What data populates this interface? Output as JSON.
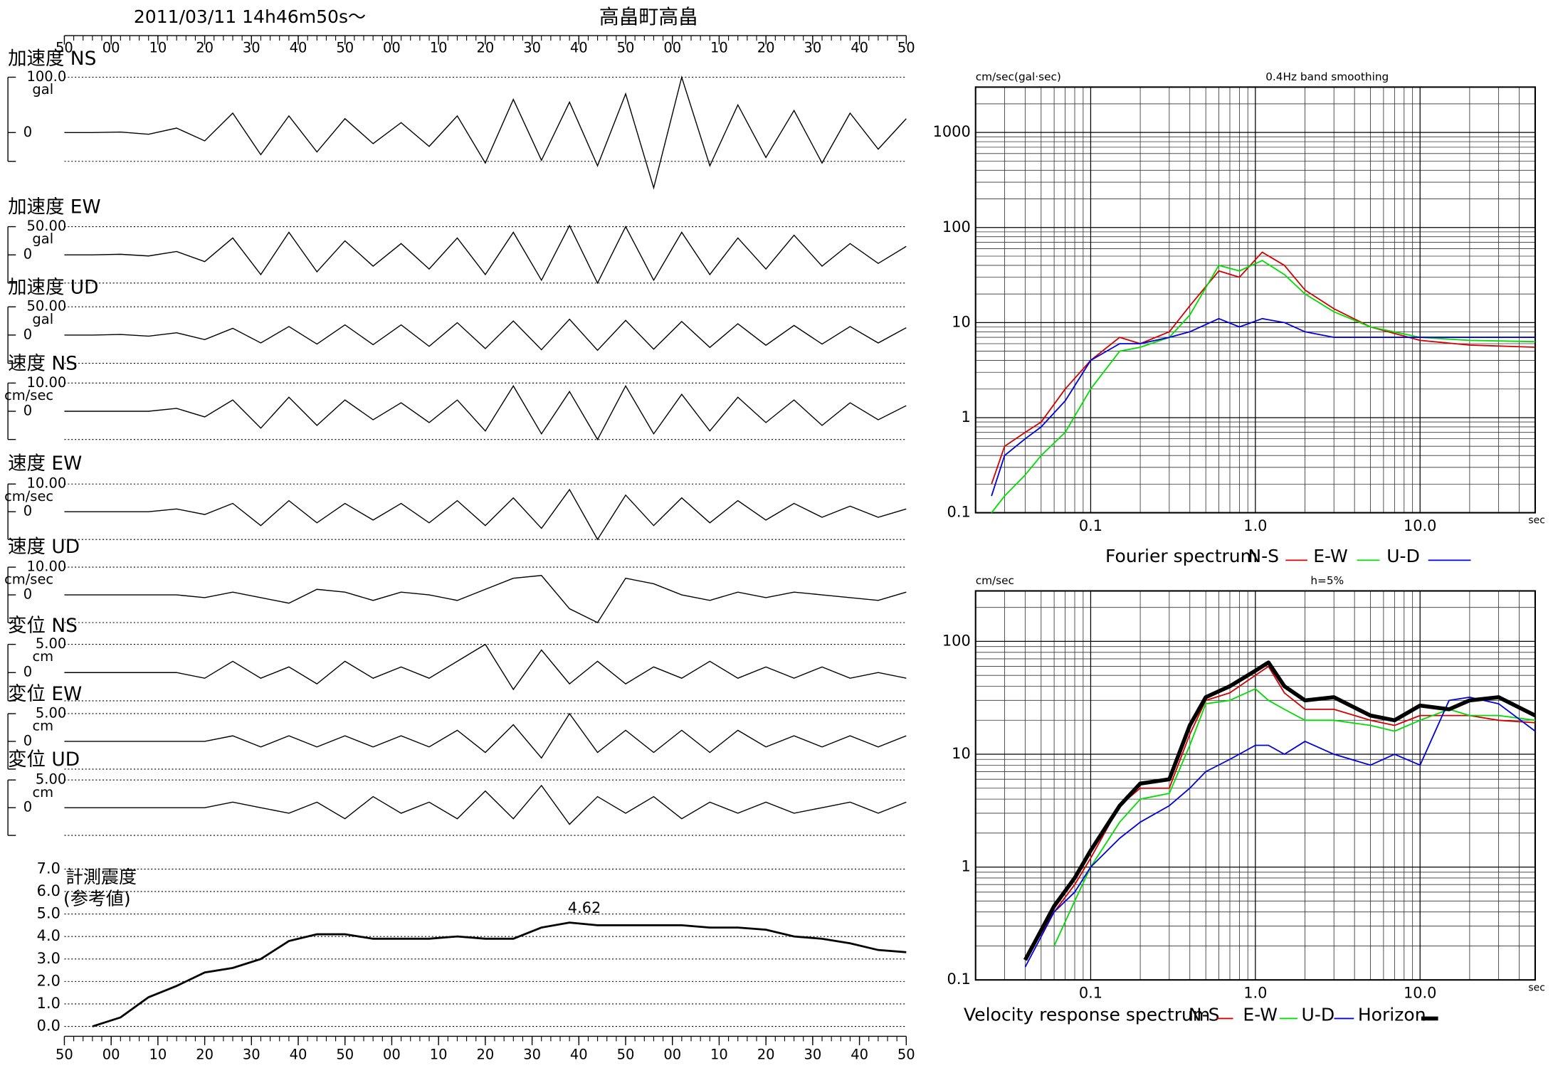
{
  "chart_data": [
    {
      "type": "waveform",
      "title": "2011/03/11  14h46m50s〜",
      "subtitle": "高畠町高畠",
      "xlim": [
        0,
        180
      ],
      "xticks": [
        {
          "value": 0,
          "label": "50"
        },
        {
          "value": 10,
          "label": "00"
        },
        {
          "value": 20,
          "label": "10"
        },
        {
          "value": 30,
          "label": "20"
        },
        {
          "value": 40,
          "label": "30"
        },
        {
          "value": 50,
          "label": "40"
        },
        {
          "value": 60,
          "label": "50"
        },
        {
          "value": 70,
          "label": "00"
        },
        {
          "value": 80,
          "label": "10"
        },
        {
          "value": 90,
          "label": "20"
        },
        {
          "value": 100,
          "label": "30"
        },
        {
          "value": 110,
          "label": "40"
        },
        {
          "value": 120,
          "label": "50"
        },
        {
          "value": 130,
          "label": "00"
        },
        {
          "value": 140,
          "label": "10"
        },
        {
          "value": 150,
          "label": "20"
        },
        {
          "value": 160,
          "label": "30"
        },
        {
          "value": 170,
          "label": "40"
        },
        {
          "value": 180,
          "label": "50"
        }
      ],
      "x": [
        0,
        6,
        12,
        18,
        24,
        30,
        36,
        42,
        48,
        54,
        60,
        66,
        72,
        78,
        84,
        90,
        96,
        102,
        108,
        114,
        120,
        126,
        132,
        138,
        144,
        150,
        156,
        162,
        168,
        174,
        180
      ],
      "panels": [
        {
          "name": "加速度 NS",
          "unit": "gal",
          "ylim": [
            -52,
            100
          ],
          "yticks": [
            0,
            {
              "value": 100,
              "label": "100.0"
            }
          ],
          "values": [
            0,
            0,
            1,
            -3,
            8,
            -15,
            35,
            -40,
            30,
            -35,
            25,
            -20,
            18,
            -25,
            30,
            -55,
            60,
            -50,
            55,
            -60,
            70,
            -100,
            100,
            -60,
            50,
            -45,
            40,
            -55,
            35,
            -30,
            25
          ]
        },
        {
          "name": "加速度 EW",
          "unit": "gal",
          "ylim": [
            -50,
            50
          ],
          "yticks": [
            0,
            {
              "value": 50,
              "label": "50.00"
            }
          ],
          "values": [
            0,
            0,
            1,
            -2,
            6,
            -12,
            30,
            -35,
            40,
            -30,
            25,
            -20,
            20,
            -25,
            30,
            -35,
            40,
            -45,
            52,
            -50,
            50,
            -45,
            40,
            -35,
            30,
            -25,
            35,
            -20,
            20,
            -15,
            15
          ]
        },
        {
          "name": "加速度 UD",
          "unit": "gal",
          "ylim": [
            -50,
            50
          ],
          "yticks": [
            0,
            {
              "value": 50,
              "label": "50.00"
            }
          ],
          "values": [
            0,
            0,
            1,
            -2,
            4,
            -8,
            12,
            -14,
            15,
            -16,
            18,
            -17,
            18,
            -20,
            22,
            -24,
            25,
            -26,
            28,
            -27,
            26,
            -25,
            24,
            -22,
            20,
            -18,
            17,
            -16,
            15,
            -14,
            13
          ]
        },
        {
          "name": "速度 NS",
          "unit": "cm/sec",
          "ylim": [
            -10,
            10
          ],
          "yticks": [
            0,
            {
              "value": 10,
              "label": "10.00"
            }
          ],
          "values": [
            0,
            0,
            0,
            0,
            1,
            -2,
            4,
            -6,
            5,
            -5,
            4,
            -3,
            3,
            -4,
            4,
            -7,
            9,
            -8,
            7,
            -10,
            9,
            -8,
            6,
            -7,
            5,
            -4,
            4,
            -5,
            3,
            -3,
            2
          ]
        },
        {
          "name": "速度 EW",
          "unit": "cm/sec",
          "ylim": [
            -10,
            10
          ],
          "yticks": [
            0,
            {
              "value": 10,
              "label": "10.00"
            }
          ],
          "values": [
            0,
            0,
            0,
            0,
            1,
            -1,
            3,
            -5,
            4,
            -4,
            3,
            -3,
            3,
            -4,
            4,
            -5,
            5,
            -6,
            8,
            -10,
            6,
            -5,
            5,
            -4,
            4,
            -3,
            3,
            -2,
            2,
            -2,
            1
          ]
        },
        {
          "name": "速度 UD",
          "unit": "cm/sec",
          "ylim": [
            -10,
            10
          ],
          "yticks": [
            0,
            {
              "value": 10,
              "label": "10.00"
            }
          ],
          "values": [
            0,
            0,
            0,
            0,
            0,
            -1,
            1,
            -1,
            -3,
            2,
            1,
            -2,
            1,
            0,
            -2,
            2,
            6,
            7,
            -5,
            -10,
            6,
            4,
            0,
            -2,
            1,
            -1,
            1,
            0,
            -1,
            -2,
            1
          ]
        },
        {
          "name": "変位 NS",
          "unit": "cm",
          "ylim": [
            -5,
            5
          ],
          "yticks": [
            0,
            {
              "value": 5,
              "label": "5.00"
            }
          ],
          "values": [
            0,
            0,
            0,
            0,
            0,
            -1,
            2,
            -1,
            1,
            -2,
            2,
            -1,
            1,
            -1,
            2,
            5,
            -3,
            4,
            -2,
            2,
            -2,
            1,
            -1,
            2,
            -1,
            1,
            -1,
            1,
            -1,
            0,
            -1
          ]
        },
        {
          "name": "変位 EW",
          "unit": "cm",
          "ylim": [
            -5,
            5
          ],
          "yticks": [
            0,
            {
              "value": 5,
              "label": "5.00"
            }
          ],
          "values": [
            0,
            0,
            0,
            0,
            0,
            0,
            1,
            -1,
            1,
            -1,
            1,
            -1,
            1,
            -1,
            2,
            -2,
            3,
            -3,
            5,
            -2,
            2,
            -2,
            2,
            -2,
            2,
            -1,
            1,
            -1,
            1,
            -1,
            1
          ]
        },
        {
          "name": "変位 UD",
          "unit": "cm",
          "ylim": [
            -5,
            5
          ],
          "yticks": [
            0,
            {
              "value": 5,
              "label": "5.00"
            }
          ],
          "values": [
            0,
            0,
            0,
            0,
            0,
            0,
            1,
            0,
            -1,
            1,
            -2,
            2,
            -1,
            1,
            -2,
            3,
            -2,
            4,
            -3,
            2,
            -1,
            2,
            -2,
            1,
            -1,
            1,
            -1,
            0,
            1,
            -1,
            1
          ]
        }
      ]
    },
    {
      "type": "line",
      "name": "計測震度",
      "note": "(参考値)",
      "xlim": [
        0,
        180
      ],
      "xticks": [
        {
          "value": 0,
          "label": "50"
        },
        {
          "value": 10,
          "label": "00"
        },
        {
          "value": 20,
          "label": "10"
        },
        {
          "value": 30,
          "label": "20"
        },
        {
          "value": 40,
          "label": "30"
        },
        {
          "value": 50,
          "label": "40"
        },
        {
          "value": 60,
          "label": "50"
        },
        {
          "value": 70,
          "label": "00"
        },
        {
          "value": 80,
          "label": "10"
        },
        {
          "value": 90,
          "label": "20"
        },
        {
          "value": 100,
          "label": "30"
        },
        {
          "value": 110,
          "label": "40"
        },
        {
          "value": 120,
          "label": "50"
        },
        {
          "value": 130,
          "label": "00"
        },
        {
          "value": 140,
          "label": "10"
        },
        {
          "value": 150,
          "label": "20"
        },
        {
          "value": 160,
          "label": "30"
        },
        {
          "value": 170,
          "label": "40"
        },
        {
          "value": 180,
          "label": "50"
        }
      ],
      "ylim": [
        0,
        7
      ],
      "yticks": [
        {
          "value": 0,
          "label": "0.0"
        },
        {
          "value": 1,
          "label": "1.0"
        },
        {
          "value": 2,
          "label": "2.0"
        },
        {
          "value": 3,
          "label": "3.0"
        },
        {
          "value": 4,
          "label": "4.0"
        },
        {
          "value": 5,
          "label": "5.0"
        },
        {
          "value": 6,
          "label": "6.0"
        },
        {
          "value": 7,
          "label": "7.0"
        }
      ],
      "x": [
        0,
        6,
        12,
        18,
        24,
        30,
        36,
        42,
        48,
        54,
        60,
        66,
        72,
        78,
        84,
        90,
        96,
        102,
        108,
        114,
        120,
        126,
        132,
        138,
        144,
        150,
        156,
        162,
        168,
        174,
        180
      ],
      "values": [
        null,
        0.0,
        0.4,
        1.3,
        1.8,
        2.4,
        2.6,
        3.0,
        3.8,
        4.1,
        4.1,
        3.9,
        3.9,
        3.9,
        4.0,
        3.9,
        3.9,
        4.4,
        4.62,
        4.5,
        4.5,
        4.5,
        4.5,
        4.4,
        4.4,
        4.3,
        4.0,
        3.9,
        3.7,
        3.4,
        3.3
      ]
    },
    {
      "type": "line",
      "xscale": "log",
      "yscale": "log",
      "grid": true,
      "title": "0.4Hz band smoothing",
      "ylabel": "cm/sec(gal·sec)",
      "xlabel": "sec",
      "caption": "Fourier spectrum",
      "xlim": [
        0.02,
        50
      ],
      "ylim": [
        0.1,
        3000
      ],
      "xticks": [
        0.1,
        {
          "value": 1,
          "label": "1.0"
        },
        {
          "value": 10,
          "label": "10.0"
        }
      ],
      "yticks": [
        0.1,
        1,
        10,
        100,
        1000
      ],
      "x": [
        0.025,
        0.03,
        0.04,
        0.05,
        0.07,
        0.1,
        0.15,
        0.2,
        0.3,
        0.4,
        0.6,
        0.8,
        1.1,
        1.5,
        2,
        3,
        5,
        10,
        20,
        50
      ],
      "series": [
        {
          "name": "N-S",
          "color": "#d40000",
          "values": [
            0.2,
            0.5,
            0.7,
            0.9,
            2,
            4,
            7,
            6,
            8,
            15,
            35,
            30,
            55,
            40,
            22,
            14,
            9,
            6.5,
            5.8,
            5.5
          ]
        },
        {
          "name": "E-W",
          "color": "#00dd00",
          "values": [
            0.1,
            0.15,
            0.25,
            0.4,
            0.7,
            2,
            5,
            5.5,
            7,
            12,
            40,
            35,
            45,
            32,
            20,
            13,
            9,
            7,
            6.5,
            6.3
          ]
        },
        {
          "name": "U-D",
          "color": "#0000e0",
          "values": [
            0.15,
            0.4,
            0.6,
            0.8,
            1.5,
            4,
            6,
            6,
            7,
            8,
            11,
            9,
            11,
            10,
            8,
            7,
            7,
            7,
            7,
            7
          ]
        }
      ]
    },
    {
      "type": "line",
      "xscale": "log",
      "yscale": "log",
      "grid": true,
      "title": "h=5%",
      "ylabel": "cm/sec",
      "xlabel": "sec",
      "caption": "Velocity response spectrum",
      "xlim": [
        0.02,
        50
      ],
      "ylim": [
        0.1,
        280
      ],
      "xticks": [
        0.1,
        {
          "value": 1,
          "label": "1.0"
        },
        {
          "value": 10,
          "label": "10.0"
        }
      ],
      "yticks": [
        0.1,
        1,
        10,
        100
      ],
      "x": [
        0.04,
        0.06,
        0.08,
        0.1,
        0.15,
        0.2,
        0.3,
        0.4,
        0.5,
        0.7,
        1.0,
        1.2,
        1.5,
        2,
        3,
        5,
        7,
        10,
        15,
        20,
        30,
        50
      ],
      "series": [
        {
          "name": "N-S",
          "color": "#d40000",
          "values": [
            0.15,
            0.4,
            0.7,
            1.2,
            3.5,
            5,
            5,
            15,
            30,
            35,
            50,
            60,
            35,
            25,
            25,
            20,
            18,
            22,
            22,
            22,
            20,
            19
          ]
        },
        {
          "name": "E-W",
          "color": "#00dd00",
          "values": [
            null,
            0.2,
            0.5,
            1,
            2.5,
            4,
            4.5,
            12,
            28,
            30,
            38,
            30,
            25,
            20,
            20,
            18,
            16,
            20,
            25,
            22,
            22,
            20
          ]
        },
        {
          "name": "U-D",
          "color": "#0000e0",
          "values": [
            0.13,
            0.4,
            0.6,
            1,
            1.8,
            2.5,
            3.5,
            5,
            7,
            9,
            12,
            12,
            10,
            13,
            10,
            8,
            10,
            8,
            30,
            32,
            28,
            16
          ]
        },
        {
          "name": "Horizon",
          "color": "#000000",
          "width": 4,
          "values": [
            0.15,
            0.45,
            0.8,
            1.4,
            3.5,
            5.5,
            6,
            18,
            32,
            40,
            55,
            65,
            40,
            30,
            32,
            22,
            20,
            27,
            25,
            30,
            32,
            22
          ]
        }
      ]
    }
  ]
}
